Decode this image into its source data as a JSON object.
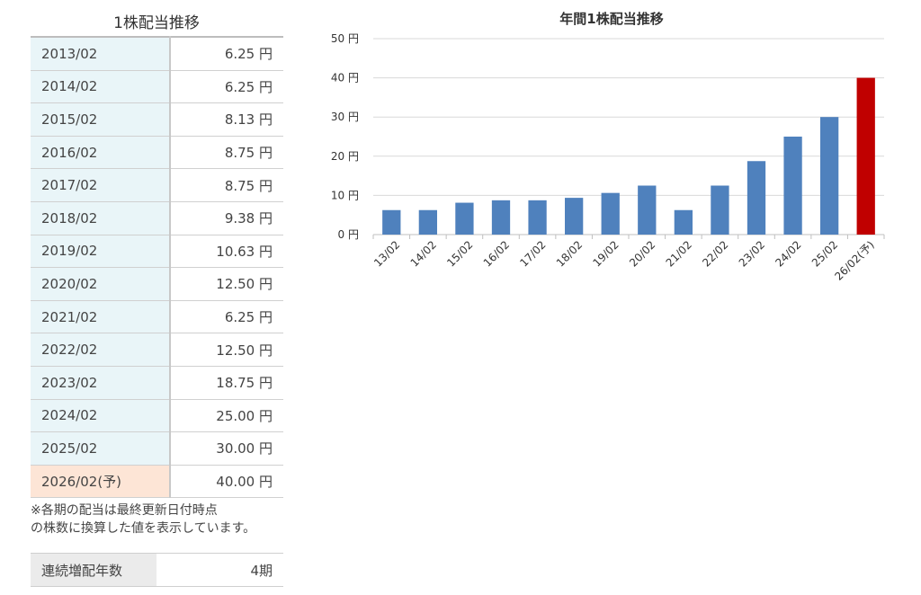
{
  "table": {
    "title": "1株配当推移",
    "rows": [
      {
        "period": "2013/02",
        "value": "6.25 円"
      },
      {
        "period": "2014/02",
        "value": "6.25 円"
      },
      {
        "period": "2015/02",
        "value": "8.13 円"
      },
      {
        "period": "2016/02",
        "value": "8.75 円"
      },
      {
        "period": "2017/02",
        "value": "8.75 円"
      },
      {
        "period": "2018/02",
        "value": "9.38 円"
      },
      {
        "period": "2019/02",
        "value": "10.63 円"
      },
      {
        "period": "2020/02",
        "value": "12.50 円"
      },
      {
        "period": "2021/02",
        "value": "6.25 円"
      },
      {
        "period": "2022/02",
        "value": "12.50 円"
      },
      {
        "period": "2023/02",
        "value": "18.75 円"
      },
      {
        "period": "2024/02",
        "value": "25.00 円"
      },
      {
        "period": "2025/02",
        "value": "30.00 円"
      },
      {
        "period": "2026/02(予)",
        "value": "40.00 円"
      }
    ],
    "forecast_row_color": "#fde5d6",
    "actual_row_color": "#e9f5f8"
  },
  "note_line1": "※各期の配当は最終更新日付時点",
  "note_line2": "の株数に換算した値を表示しています。",
  "streak": {
    "label": "連続増配年数",
    "value": "4期"
  },
  "chart_data": {
    "type": "bar",
    "title": "年間1株配当推移",
    "categories": [
      "13/02",
      "14/02",
      "15/02",
      "16/02",
      "17/02",
      "18/02",
      "19/02",
      "20/02",
      "21/02",
      "22/02",
      "23/02",
      "24/02",
      "25/02",
      "26/02(予)"
    ],
    "values": [
      6.25,
      6.25,
      8.13,
      8.75,
      8.75,
      9.38,
      10.63,
      12.5,
      6.25,
      12.5,
      18.75,
      25.0,
      30.0,
      40.0
    ],
    "ylim": [
      0,
      50
    ],
    "yticks": [
      "0 円",
      "10 円",
      "20 円",
      "30 円",
      "40 円",
      "50 円"
    ],
    "ytick_values": [
      0,
      10,
      20,
      30,
      40,
      50
    ],
    "grid": true,
    "colors": {
      "actual": "#4f81bd",
      "forecast": "#c00000"
    }
  }
}
